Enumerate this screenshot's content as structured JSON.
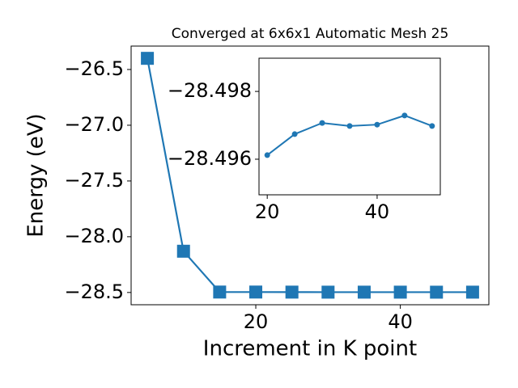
{
  "chart_data": [
    {
      "type": "line",
      "title": "Converged at 6x6x1 Automatic Mesh 25",
      "x_label": "Increment in K point",
      "y_label": "Energy (eV)",
      "x": [
        5,
        10,
        15,
        20,
        25,
        30,
        35,
        40,
        45,
        50
      ],
      "series": [
        {
          "color": "#1f77b4",
          "marker": "square",
          "values": [
            -26.4,
            -28.13,
            -28.4961,
            -28.4961,
            -28.4967,
            -28.4971,
            -28.497,
            -28.497,
            -28.4973,
            -28.497
          ]
        }
      ],
      "xlim": [
        2.75,
        52.25
      ],
      "xticks": [
        20,
        40
      ],
      "ylim": [
        -28.61,
        -26.29
      ],
      "yticks": [
        {
          "value": -28.5,
          "label": "−28.5"
        },
        {
          "value": -28.0,
          "label": "−28.0"
        },
        {
          "value": -27.5,
          "label": "−27.5"
        },
        {
          "value": -27.0,
          "label": "−27.0"
        },
        {
          "value": -26.5,
          "label": "−26.5"
        }
      ]
    },
    {
      "type": "line",
      "x": [
        20,
        25,
        30,
        35,
        40,
        45,
        50
      ],
      "series": [
        {
          "color": "#1f77b4",
          "marker": "circle",
          "values": [
            -28.49612,
            -28.49674,
            -28.49707,
            -28.49698,
            -28.49702,
            -28.49729,
            -28.49698
          ]
        }
      ],
      "xlim": [
        18.5,
        51.5
      ],
      "xticks": [
        20,
        40
      ],
      "ylim": [
        -28.49495,
        -28.49898
      ],
      "yticks": [
        {
          "value": -28.496,
          "label": "−28.496"
        },
        {
          "value": -28.498,
          "label": "−28.498"
        }
      ]
    }
  ]
}
